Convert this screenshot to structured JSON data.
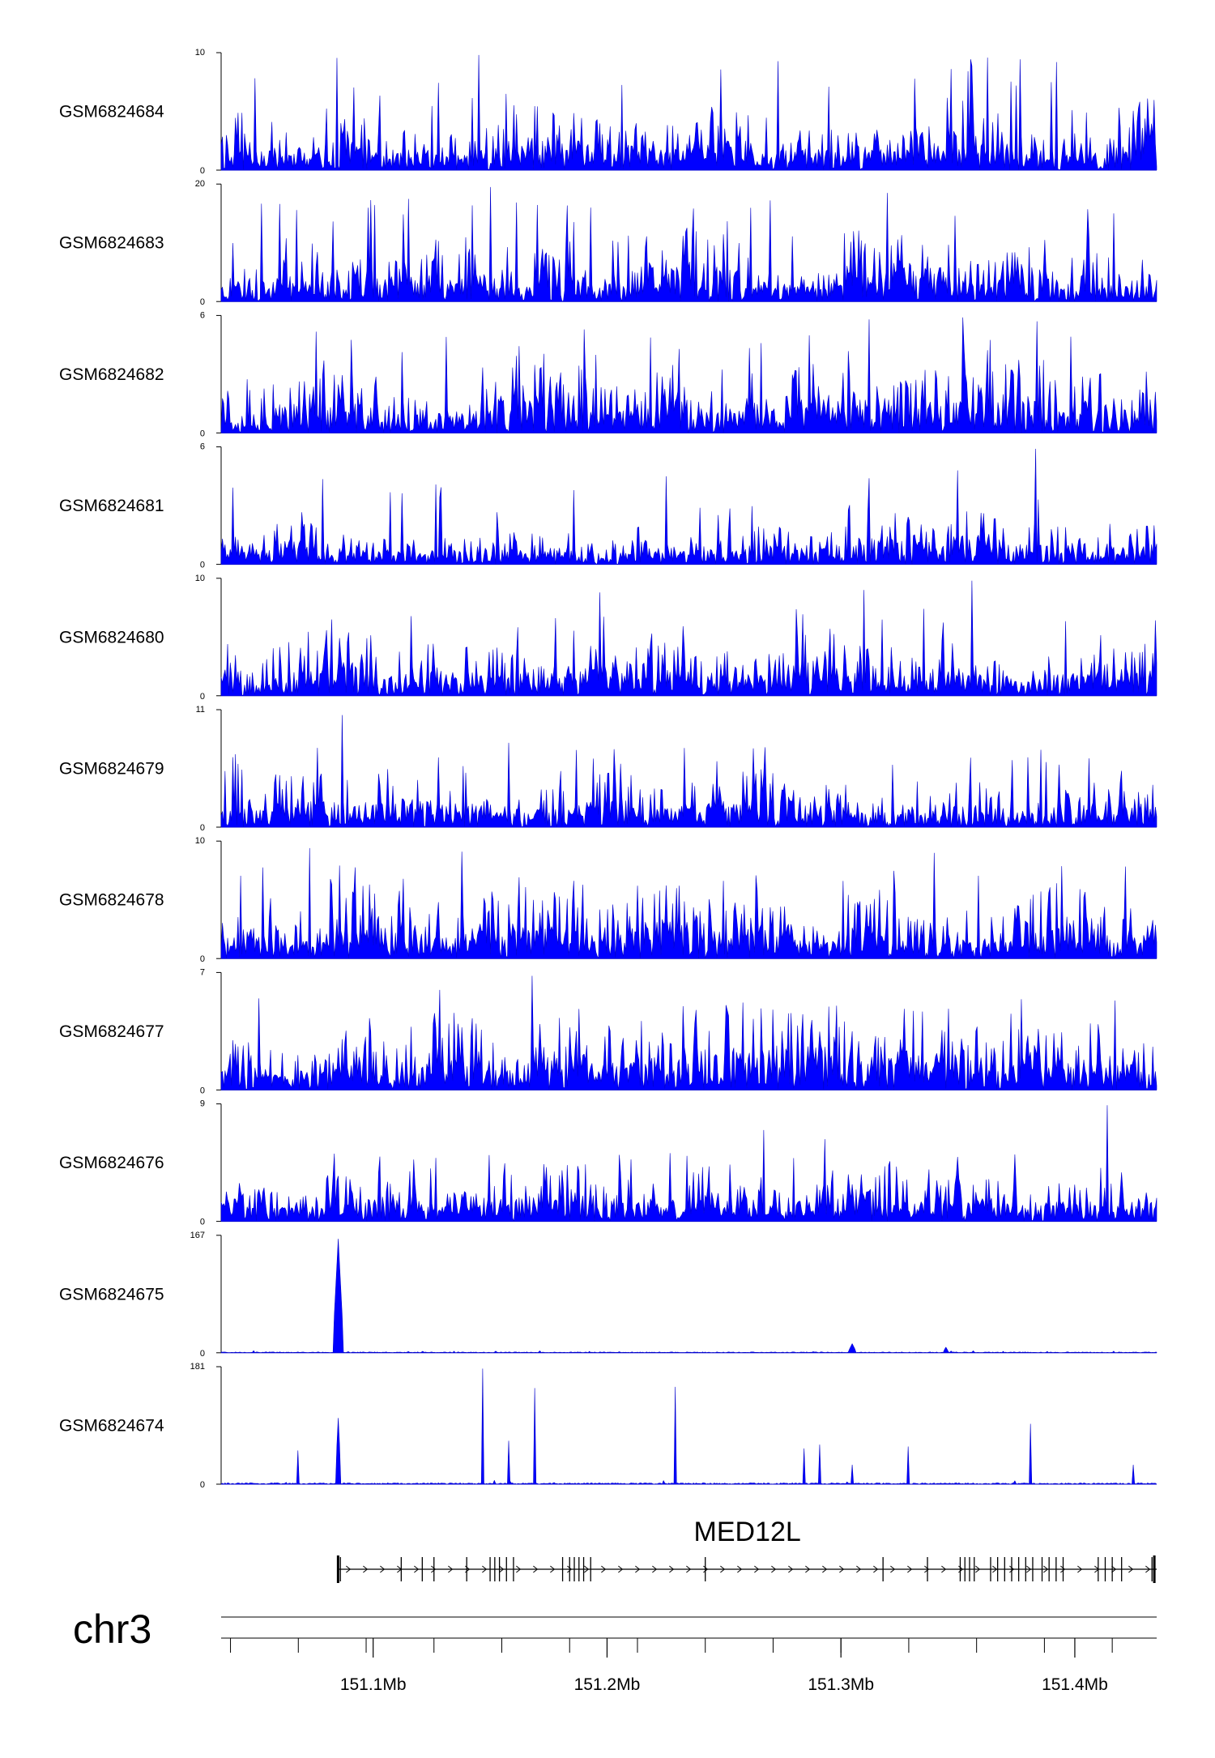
{
  "chart_data": {
    "type": "area",
    "title": "",
    "chromosome": "chr3",
    "x_unit": "bp",
    "xlim": [
      151035000,
      151435000
    ],
    "x_ticks": [
      151100000,
      151200000,
      151300000,
      151400000
    ],
    "x_tick_labels": [
      "151.1Mb",
      "151.2Mb",
      "151.3Mb",
      "151.4Mb"
    ],
    "line_color": "#0000cc",
    "fill_color": "#0000ff",
    "series": [
      {
        "name": "GSM6824684",
        "ymax": 10,
        "ymax_label": "10",
        "ymin_label": "0",
        "mode": "noise",
        "base": 2.2,
        "spike_top": 9.6,
        "seed": 11,
        "peaks": [
          [
            151145000,
            9.8
          ],
          [
            151295000,
            7.1
          ],
          [
            151347000,
            8.6
          ],
          [
            151392000,
            9.2
          ]
        ]
      },
      {
        "name": "GSM6824683",
        "ymax": 20,
        "ymax_label": "20",
        "ymin_label": "0",
        "mode": "noise",
        "base": 4.5,
        "spike_top": 17.5,
        "seed": 23,
        "peaks": [
          [
            151150000,
            19.5
          ],
          [
            151320000,
            18.5
          ],
          [
            151193000,
            16.0
          ]
        ]
      },
      {
        "name": "GSM6824682",
        "ymax": 6,
        "ymax_label": "6",
        "ymin_label": "0",
        "mode": "noise",
        "base": 1.6,
        "spike_top": 5.4,
        "seed": 37,
        "peaks": [
          [
            151312000,
            5.8
          ],
          [
            151352000,
            5.9
          ],
          [
            151384000,
            5.7
          ]
        ]
      },
      {
        "name": "GSM6824681",
        "ymax": 6,
        "ymax_label": "6",
        "ymin_label": "0",
        "mode": "noise",
        "base": 1.0,
        "spike_top": 4.4,
        "seed": 41,
        "peaks": [
          [
            151225000,
            4.5
          ],
          [
            151383000,
            5.9
          ],
          [
            151350000,
            4.8
          ]
        ]
      },
      {
        "name": "GSM6824680",
        "ymax": 10,
        "ymax_label": "10",
        "ymin_label": "0",
        "mode": "noise",
        "base": 2.0,
        "spike_top": 8.2,
        "seed": 53,
        "peaks": [
          [
            151356000,
            9.8
          ],
          [
            151310000,
            9.0
          ],
          [
            151197000,
            8.8
          ]
        ]
      },
      {
        "name": "GSM6824679",
        "ymax": 11,
        "ymax_label": "11",
        "ymin_label": "0",
        "mode": "noise",
        "base": 2.0,
        "spike_top": 7.5,
        "seed": 67,
        "peaks": [
          [
            151087000,
            10.5
          ],
          [
            151158000,
            7.9
          ]
        ]
      },
      {
        "name": "GSM6824678",
        "ymax": 10,
        "ymax_label": "10",
        "ymin_label": "0",
        "mode": "noise",
        "base": 2.3,
        "spike_top": 8.5,
        "seed": 71,
        "peaks": [
          [
            151073000,
            9.4
          ],
          [
            151138000,
            9.1
          ],
          [
            151340000,
            9.0
          ]
        ]
      },
      {
        "name": "GSM6824677",
        "ymax": 7,
        "ymax_label": "7",
        "ymin_label": "0",
        "mode": "noise",
        "base": 2.0,
        "spike_top": 6.0,
        "seed": 83,
        "peaks": [
          [
            151168000,
            6.8
          ]
        ]
      },
      {
        "name": "GSM6824676",
        "ymax": 9,
        "ymax_label": "9",
        "ymin_label": "0",
        "mode": "noise",
        "base": 1.6,
        "spike_top": 5.5,
        "seed": 97,
        "peaks": [
          [
            151414000,
            8.9
          ],
          [
            151267000,
            7.0
          ],
          [
            151293000,
            6.3
          ]
        ]
      },
      {
        "name": "GSM6824675",
        "ymax": 167,
        "ymax_label": "167",
        "ymin_label": "0",
        "mode": "sparse",
        "base": 1.2,
        "spike_top": 3,
        "seed": 101,
        "peaks": [
          [
            151085000,
            162,
            4
          ],
          [
            151305000,
            13,
            3
          ],
          [
            151345000,
            8,
            2
          ]
        ]
      },
      {
        "name": "GSM6824674",
        "ymax": 181,
        "ymax_label": "181",
        "ymin_label": "0",
        "mode": "sparse",
        "base": 2.0,
        "spike_top": 6,
        "seed": 113,
        "peaks": [
          [
            151068000,
            52,
            1
          ],
          [
            151085000,
            102,
            2
          ],
          [
            151147000,
            178,
            1
          ],
          [
            151158000,
            67,
            1
          ],
          [
            151169000,
            148,
            1
          ],
          [
            151229000,
            150,
            1
          ],
          [
            151284000,
            55,
            1
          ],
          [
            151291000,
            61,
            1
          ],
          [
            151305000,
            30,
            1
          ],
          [
            151329000,
            58,
            1
          ],
          [
            151381000,
            93,
            1
          ],
          [
            151425000,
            30,
            1
          ]
        ]
      }
    ]
  },
  "gene": {
    "name": "MED12L",
    "start": 151085000,
    "end": 151435000,
    "exons": [
      151085000,
      151086000,
      151112000,
      151121000,
      151126000,
      151140000,
      151150000,
      151152000,
      151154000,
      151157000,
      151160000,
      151181000,
      151184000,
      151186000,
      151188000,
      151190000,
      151193000,
      151242000,
      151318000,
      151337000,
      151351000,
      151353000,
      151355000,
      151357000,
      151364000,
      151367000,
      151370000,
      151373000,
      151376000,
      151379000,
      151382000,
      151386000,
      151389000,
      151392000,
      151395000,
      151410000,
      151413000,
      151416000,
      151420000,
      151433000,
      151434000
    ]
  }
}
